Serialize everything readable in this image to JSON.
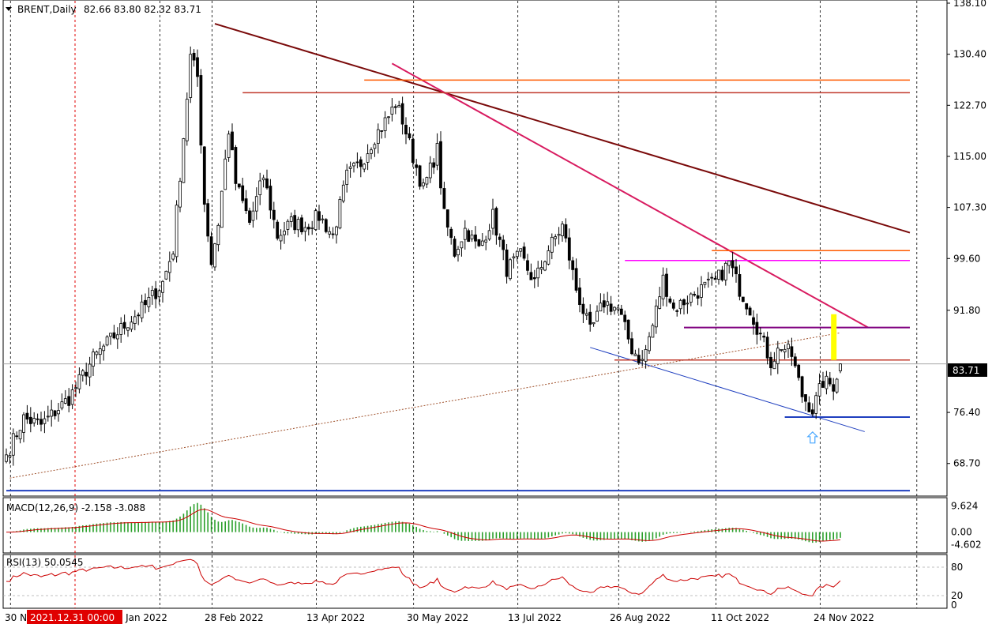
{
  "header": {
    "symbol_label": "BRENT,Daily",
    "ohlc": "82.66 83.80 82.32 83.71"
  },
  "colors": {
    "bull_fill": "#ffffff",
    "bear_fill": "#000000",
    "candle_stroke": "#000000",
    "macd_hist": "#2ca02c",
    "macd_signal": "#cc0000",
    "rsi_line": "#cc0000",
    "trend_long": "#7a0a0a",
    "trend_mid": "#d81b60",
    "resist_orange": "#ff5a00",
    "resist_red": "#c0392b",
    "level_magenta": "#ff00ff",
    "level_purple": "#800080",
    "channel_blue": "#1f3fbf",
    "ma_brown": "#a0522d",
    "highlight_yellow": "#ffff00",
    "arrow_blue": "#4aa8ff"
  },
  "main_axis": {
    "min": 64.5,
    "max": 138.1,
    "ticks": [
      "138.10",
      "130.40",
      "122.70",
      "115.00",
      "107.30",
      "99.60",
      "91.80",
      "76.40",
      "68.70"
    ],
    "current_price_label": "83.71"
  },
  "macd": {
    "label": "MACD(12,26,9) -2.158 -3.088",
    "min": -6.5,
    "max": 11.5,
    "ticks": [
      "9.624",
      "0.00",
      "-4.602"
    ]
  },
  "rsi": {
    "label": "RSI(13) 50.0545",
    "min": 0,
    "max": 100,
    "ticks": [
      "80",
      "20",
      "0"
    ]
  },
  "x_axis": {
    "labels": [
      "30 Nov",
      "13 Jan 2022",
      "28 Feb 2022",
      "13 Apr 2022",
      "30 May 2022",
      "13 Jul 2022",
      "26 Aug 2022",
      "11 Oct 2022",
      "24 Nov 2022"
    ],
    "crosshair_label": "2021.12.31 00:00"
  },
  "chart_data": {
    "type": "candlestick",
    "instrument": "BRENT",
    "timeframe": "Daily",
    "last": {
      "open": 82.66,
      "high": 83.8,
      "low": 82.32,
      "close": 83.71
    },
    "dates": [
      "30 Nov",
      "13 Jan 2022",
      "28 Feb 2022",
      "13 Apr 2022",
      "30 May 2022",
      "13 Jul 2022",
      "26 Aug 2022",
      "11 Oct 2022",
      "24 Nov 2022"
    ],
    "close_waypoints": [
      {
        "bar": 0,
        "price": 70.0
      },
      {
        "bar": 5,
        "price": 75.5
      },
      {
        "bar": 10,
        "price": 74.5
      },
      {
        "bar": 18,
        "price": 78.5
      },
      {
        "bar": 25,
        "price": 84.5
      },
      {
        "bar": 32,
        "price": 88.5
      },
      {
        "bar": 40,
        "price": 92.5
      },
      {
        "bar": 45,
        "price": 96.0
      },
      {
        "bar": 48,
        "price": 101.0
      },
      {
        "bar": 51,
        "price": 118.0
      },
      {
        "bar": 53,
        "price": 130.0
      },
      {
        "bar": 55,
        "price": 127.0
      },
      {
        "bar": 57,
        "price": 108.0
      },
      {
        "bar": 59,
        "price": 99.0
      },
      {
        "bar": 61,
        "price": 105.0
      },
      {
        "bar": 64,
        "price": 119.0
      },
      {
        "bar": 66,
        "price": 111.0
      },
      {
        "bar": 70,
        "price": 105.0
      },
      {
        "bar": 74,
        "price": 112.0
      },
      {
        "bar": 78,
        "price": 103.0
      },
      {
        "bar": 82,
        "price": 105.0
      },
      {
        "bar": 86,
        "price": 104.5
      },
      {
        "bar": 90,
        "price": 106.0
      },
      {
        "bar": 94,
        "price": 103.0
      },
      {
        "bar": 98,
        "price": 112.0
      },
      {
        "bar": 102,
        "price": 114.0
      },
      {
        "bar": 106,
        "price": 118.0
      },
      {
        "bar": 110,
        "price": 121.0
      },
      {
        "bar": 112,
        "price": 123.0
      },
      {
        "bar": 114,
        "price": 120.5
      },
      {
        "bar": 117,
        "price": 115.0
      },
      {
        "bar": 120,
        "price": 110.0
      },
      {
        "bar": 124,
        "price": 116.0
      },
      {
        "bar": 126,
        "price": 106.0
      },
      {
        "bar": 129,
        "price": 100.5
      },
      {
        "bar": 132,
        "price": 104.0
      },
      {
        "bar": 136,
        "price": 101.0
      },
      {
        "bar": 140,
        "price": 106.0
      },
      {
        "bar": 144,
        "price": 98.0
      },
      {
        "bar": 148,
        "price": 100.0
      },
      {
        "bar": 152,
        "price": 96.0
      },
      {
        "bar": 156,
        "price": 101.0
      },
      {
        "bar": 160,
        "price": 104.5
      },
      {
        "bar": 164,
        "price": 95.0
      },
      {
        "bar": 168,
        "price": 88.5
      },
      {
        "bar": 172,
        "price": 93.0
      },
      {
        "bar": 176,
        "price": 92.0
      },
      {
        "bar": 180,
        "price": 86.0
      },
      {
        "bar": 183,
        "price": 84.0
      },
      {
        "bar": 186,
        "price": 89.5
      },
      {
        "bar": 189,
        "price": 96.5
      },
      {
        "bar": 192,
        "price": 92.0
      },
      {
        "bar": 196,
        "price": 93.5
      },
      {
        "bar": 200,
        "price": 95.0
      },
      {
        "bar": 204,
        "price": 96.0
      },
      {
        "bar": 208,
        "price": 99.0
      },
      {
        "bar": 211,
        "price": 95.0
      },
      {
        "bar": 214,
        "price": 92.0
      },
      {
        "bar": 217,
        "price": 88.0
      },
      {
        "bar": 220,
        "price": 84.0
      },
      {
        "bar": 223,
        "price": 86.5
      },
      {
        "bar": 226,
        "price": 85.0
      },
      {
        "bar": 229,
        "price": 79.0
      },
      {
        "bar": 232,
        "price": 76.8
      },
      {
        "bar": 235,
        "price": 81.0
      },
      {
        "bar": 238,
        "price": 80.5
      },
      {
        "bar": 240,
        "price": 83.71
      }
    ],
    "annotations": [
      {
        "type": "trendline",
        "name": "long-term resistance",
        "from_bar": 60,
        "from_price": 135.0,
        "to_bar": 260,
        "to_price": 103.5
      },
      {
        "type": "trendline",
        "name": "descending resistance",
        "from_bar": 111,
        "from_price": 129.0,
        "to_bar": 248,
        "to_price": 89.2
      },
      {
        "type": "trendline",
        "name": "support channel",
        "from_bar": 168,
        "from_price": 86.2,
        "to_bar": 247,
        "to_price": 73.5
      },
      {
        "type": "trendline",
        "name": "long moving average",
        "from_bar": 1,
        "from_price": 66.5,
        "to_bar": 240,
        "to_price": 88.4
      },
      {
        "type": "hline",
        "price": 126.5,
        "from_bar": 103,
        "to_bar": 260
      },
      {
        "type": "hline",
        "price": 124.6,
        "from_bar": 68,
        "to_bar": 260
      },
      {
        "type": "hline",
        "price": 100.8,
        "from_bar": 203,
        "to_bar": 260
      },
      {
        "type": "hline",
        "price": 99.3,
        "from_bar": 178,
        "to_bar": 260
      },
      {
        "type": "hline",
        "price": 89.2,
        "from_bar": 195,
        "to_bar": 260
      },
      {
        "type": "hline",
        "price": 84.3,
        "from_bar": 175,
        "to_bar": 260
      },
      {
        "type": "hline",
        "price": 75.7,
        "from_bar": 224,
        "to_bar": 260
      },
      {
        "type": "hline",
        "price": 64.6,
        "from_bar": 0,
        "to_bar": 260
      },
      {
        "type": "highlight",
        "from_price": 84.3,
        "to_price": 91.2,
        "bar": 238
      },
      {
        "type": "arrow-up",
        "bar": 232,
        "price": 72.5
      }
    ]
  }
}
